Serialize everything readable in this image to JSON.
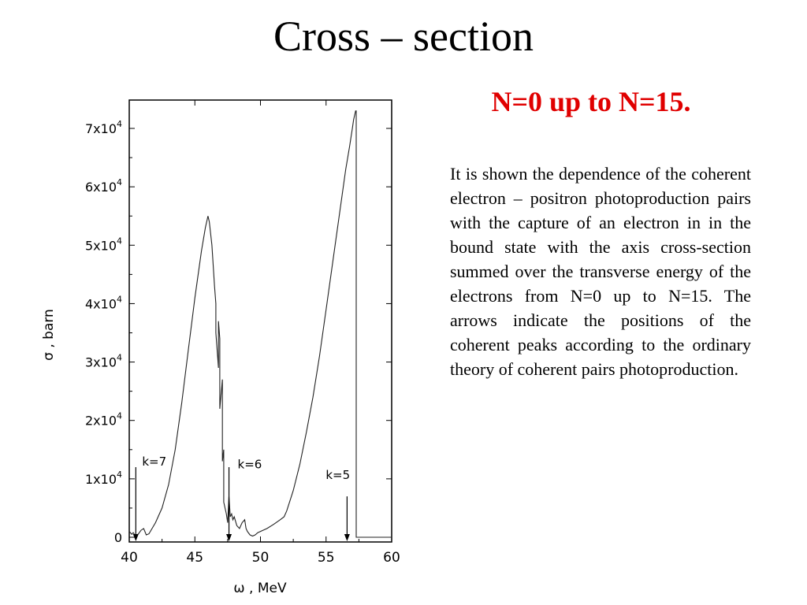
{
  "slide": {
    "title": "Cross – section",
    "subtitle": "N=0 up to N=15.",
    "description": "It is shown the dependence of the coherent electron – positron photoproduction pairs with the capture of an electron in in the bound state with the axis cross-section summed over the transverse energy of the electrons from N=0 up to N=15. The arrows indicate the positions of the coherent peaks according to the ordinary theory of coherent pairs photoproduction."
  },
  "chart_data": {
    "type": "line",
    "xlabel": "ω , MeV",
    "ylabel": "σ , barn",
    "xlim": [
      40,
      60
    ],
    "ylim": [
      0,
      75000
    ],
    "x_ticks": [
      40,
      45,
      50,
      55,
      60
    ],
    "y_ticks": [
      {
        "value": 0,
        "label": "0"
      },
      {
        "value": 10000,
        "label": "1x10^4"
      },
      {
        "value": 20000,
        "label": "2x10^4"
      },
      {
        "value": 30000,
        "label": "3x10^4"
      },
      {
        "value": 40000,
        "label": "4x10^4"
      },
      {
        "value": 50000,
        "label": "5x10^4"
      },
      {
        "value": 60000,
        "label": "6x10^4"
      },
      {
        "value": 70000,
        "label": "7x10^4"
      }
    ],
    "grid": false,
    "series": [
      {
        "x": [
          40.0,
          40.2,
          40.3,
          40.5,
          40.7,
          40.9,
          41.1,
          41.3,
          41.5,
          42.0,
          42.5,
          43.0,
          43.5,
          44.0,
          44.5,
          45.0,
          45.5,
          45.8,
          46.0,
          46.1,
          46.3,
          46.5,
          46.6,
          46.6,
          46.8,
          46.8,
          46.9,
          46.9,
          47.1,
          47.1,
          47.2,
          47.2,
          47.4,
          47.5,
          47.6,
          47.7,
          47.8,
          47.9,
          48.0,
          48.2,
          48.4,
          48.6,
          48.8,
          48.9,
          49.0,
          49.2,
          49.4,
          49.6,
          49.8,
          50.0,
          50.5,
          51.0,
          51.5,
          51.8,
          52.0,
          52.5,
          53.0,
          53.5,
          54.0,
          54.5,
          55.0,
          55.5,
          56.0,
          56.5,
          56.8,
          57.0,
          57.1,
          57.2,
          57.25,
          57.3,
          57.3,
          57.3,
          58.0,
          59.0,
          60.0
        ],
        "y": [
          1000,
          500,
          800,
          200,
          600,
          1200,
          1500,
          400,
          600,
          2500,
          5000,
          9000,
          15000,
          23000,
          32000,
          41000,
          49000,
          53000,
          55000,
          54000,
          50000,
          43000,
          40000,
          35000,
          29000,
          37000,
          34000,
          22000,
          27000,
          13000,
          15000,
          6000,
          4000,
          2500,
          7000,
          3500,
          4000,
          3000,
          3500,
          2000,
          1500,
          2500,
          3000,
          1500,
          1000,
          400,
          200,
          400,
          800,
          1000,
          1500,
          2200,
          3000,
          3500,
          4500,
          8000,
          12500,
          18000,
          24000,
          31000,
          39000,
          47000,
          55000,
          63000,
          67000,
          70000,
          71500,
          72500,
          73000,
          73000,
          36000,
          0,
          0,
          0,
          0
        ]
      }
    ],
    "annotations": [
      {
        "label": "k=7",
        "x": 40.5
      },
      {
        "label": "k=6",
        "x": 47.6
      },
      {
        "label": "k=5",
        "x": 56.6
      }
    ]
  }
}
